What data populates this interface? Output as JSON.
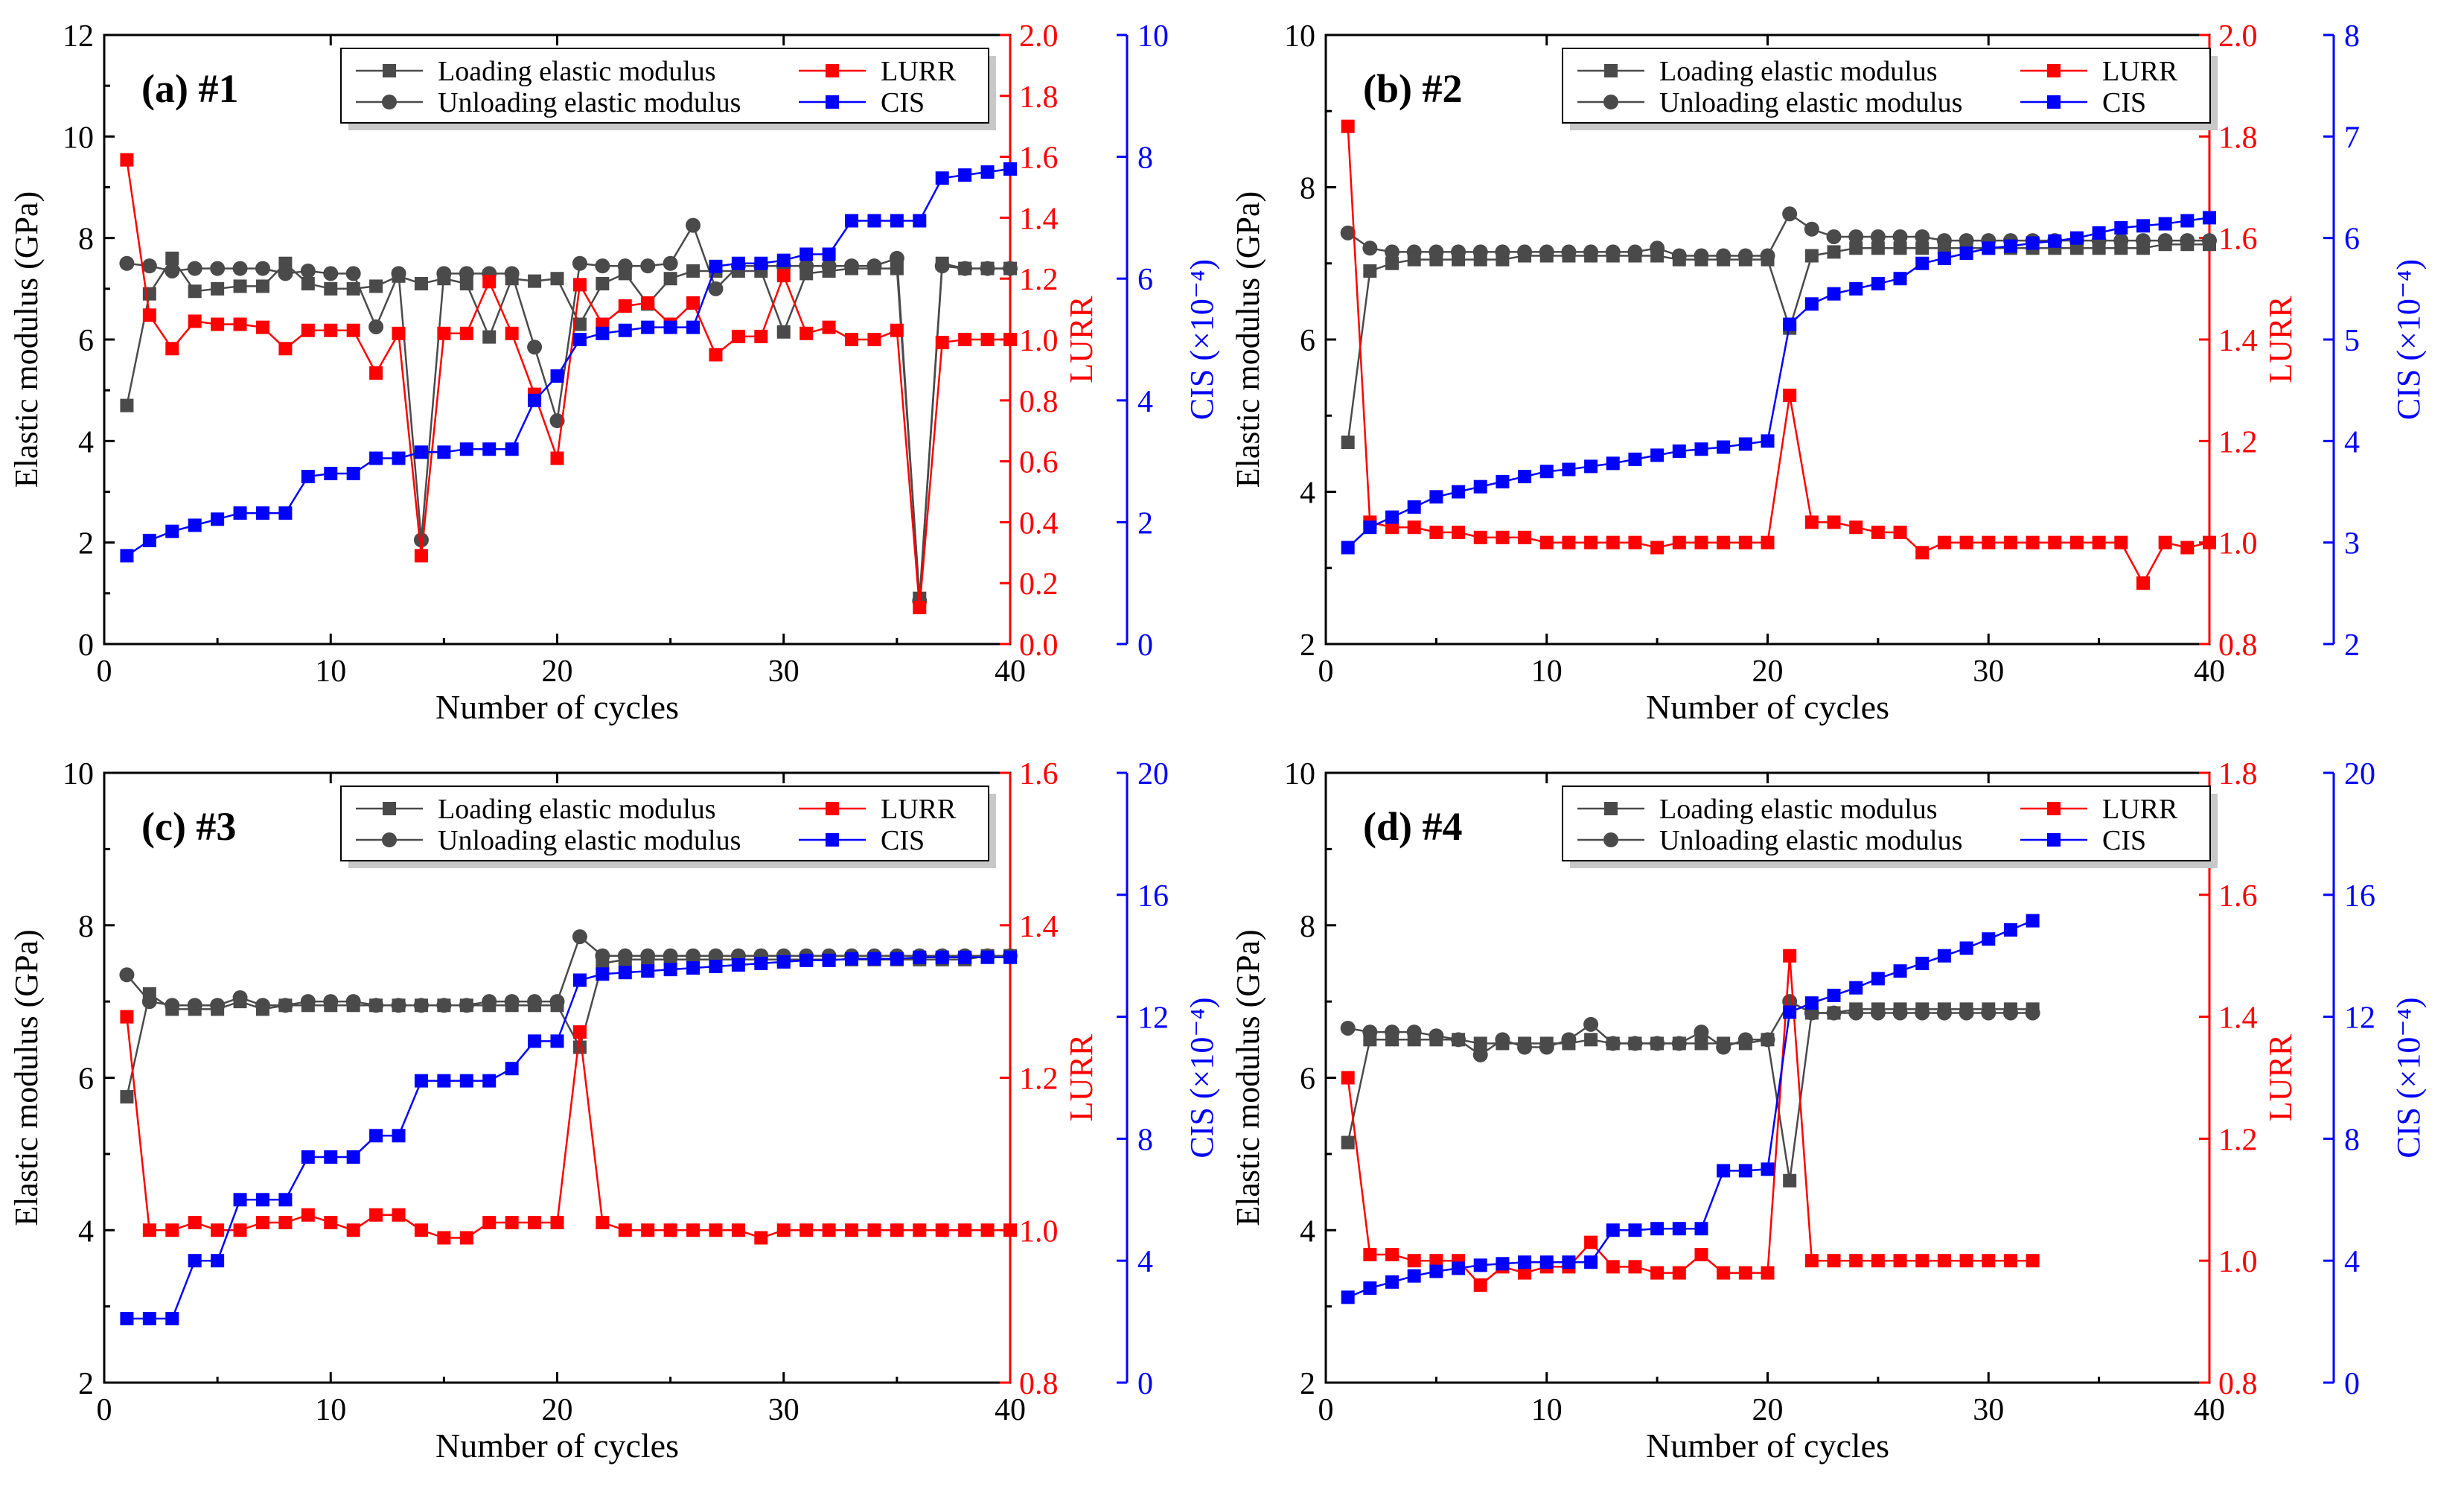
{
  "colors": {
    "loading": "#4a4a4a",
    "unloading": "#4a4a4a",
    "lurr": "#ff0000",
    "cis": "#0000ff",
    "axis": "#000000"
  },
  "legend_labels": {
    "loading": "Loading elastic modulus",
    "unloading": "Unloading elastic modulus",
    "lurr": "LURR",
    "cis": "CIS"
  },
  "chart_data": [
    {
      "type": "line",
      "panel_label": "(a) #1",
      "xlabel": "Number of cycles",
      "ylabel_left": "Elastic modulus (GPa)",
      "ylabel_lurr": "LURR",
      "ylabel_cis": "CIS (×10⁻⁴)",
      "xlim": [
        0,
        40
      ],
      "x_ticks": [
        "0",
        "10",
        "20",
        "30",
        "40"
      ],
      "ylim_left": [
        0,
        12
      ],
      "y_ticks_left": [
        "0",
        "2",
        "4",
        "6",
        "8",
        "10",
        "12"
      ],
      "ylim_lurr": [
        0.0,
        2.0
      ],
      "y_ticks_lurr": [
        "0.0",
        "0.2",
        "0.4",
        "0.6",
        "0.8",
        "1.0",
        "1.2",
        "1.4",
        "1.6",
        "1.8",
        "2.0"
      ],
      "ylim_cis": [
        0,
        10
      ],
      "y_ticks_cis": [
        "0",
        "2",
        "4",
        "6",
        "8",
        "10"
      ],
      "x": [
        1,
        2,
        3,
        4,
        5,
        6,
        7,
        8,
        9,
        10,
        11,
        12,
        13,
        14,
        15,
        16,
        17,
        18,
        19,
        20,
        21,
        22,
        23,
        24,
        25,
        26,
        27,
        28,
        29,
        30,
        31,
        32,
        33,
        34,
        35,
        36,
        37,
        38,
        39,
        40
      ],
      "series": [
        {
          "name": "Loading elastic modulus",
          "axis": "left",
          "marker": "square",
          "values": [
            4.7,
            6.9,
            7.6,
            6.95,
            7.0,
            7.05,
            7.05,
            7.5,
            7.1,
            7.0,
            7.0,
            7.05,
            7.25,
            7.1,
            7.2,
            7.1,
            6.05,
            7.2,
            7.15,
            7.2,
            6.3,
            7.1,
            7.3,
            6.7,
            7.2,
            7.35,
            7.35,
            7.35,
            7.35,
            6.15,
            7.3,
            7.35,
            7.4,
            7.4,
            7.4,
            0.9,
            7.5,
            7.4,
            7.4,
            7.4
          ]
        },
        {
          "name": "Unloading elastic modulus",
          "axis": "left",
          "marker": "circle",
          "values": [
            7.5,
            7.45,
            7.35,
            7.4,
            7.4,
            7.4,
            7.4,
            7.3,
            7.35,
            7.3,
            7.3,
            6.25,
            7.3,
            2.05,
            7.3,
            7.3,
            7.3,
            7.3,
            5.85,
            4.4,
            7.5,
            7.45,
            7.45,
            7.45,
            7.5,
            8.25,
            7.0,
            7.45,
            7.45,
            7.45,
            7.45,
            7.45,
            7.45,
            7.45,
            7.6,
            0.85,
            7.45,
            7.4,
            7.4,
            7.4
          ]
        },
        {
          "name": "LURR",
          "axis": "lurr",
          "marker": "square",
          "values": [
            1.59,
            1.08,
            0.97,
            1.06,
            1.05,
            1.05,
            1.04,
            0.97,
            1.03,
            1.03,
            1.03,
            0.89,
            1.02,
            0.29,
            1.02,
            1.02,
            1.19,
            1.02,
            0.82,
            0.61,
            1.18,
            1.05,
            1.11,
            1.12,
            1.05,
            1.12,
            0.95,
            1.01,
            1.01,
            1.21,
            1.02,
            1.04,
            1.0,
            1.0,
            1.03,
            0.12,
            0.99,
            1.0,
            1.0,
            1.0
          ]
        },
        {
          "name": "CIS",
          "axis": "cis",
          "marker": "square",
          "values": [
            1.45,
            1.7,
            1.85,
            1.95,
            2.05,
            2.15,
            2.15,
            2.15,
            2.75,
            2.8,
            2.8,
            3.05,
            3.05,
            3.15,
            3.15,
            3.2,
            3.2,
            3.2,
            4.0,
            4.4,
            5.0,
            5.1,
            5.15,
            5.2,
            5.2,
            5.2,
            6.2,
            6.25,
            6.25,
            6.3,
            6.4,
            6.4,
            6.95,
            6.95,
            6.95,
            6.95,
            7.65,
            7.7,
            7.75,
            7.8
          ]
        }
      ]
    },
    {
      "type": "line",
      "panel_label": "(b) #2",
      "xlabel": "Number of cycles",
      "ylabel_left": "Elastic modulus (GPa)",
      "ylabel_lurr": "LURR",
      "ylabel_cis": "CIS (×10⁻⁴)",
      "xlim": [
        0,
        40
      ],
      "x_ticks": [
        "0",
        "10",
        "20",
        "30",
        "40"
      ],
      "ylim_left": [
        2,
        10
      ],
      "y_ticks_left": [
        "2",
        "4",
        "6",
        "8",
        "10"
      ],
      "ylim_lurr": [
        0.8,
        2.0
      ],
      "y_ticks_lurr": [
        "0.8",
        "1.0",
        "1.2",
        "1.4",
        "1.6",
        "1.8",
        "2.0"
      ],
      "ylim_cis": [
        2,
        8
      ],
      "y_ticks_cis": [
        "2",
        "3",
        "4",
        "5",
        "6",
        "7",
        "8"
      ],
      "x": [
        1,
        2,
        3,
        4,
        5,
        6,
        7,
        8,
        9,
        10,
        11,
        12,
        13,
        14,
        15,
        16,
        17,
        18,
        19,
        20,
        21,
        22,
        23,
        24,
        25,
        26,
        27,
        28,
        29,
        30,
        31,
        32,
        33,
        34,
        35,
        36,
        37,
        38,
        39,
        40
      ],
      "series": [
        {
          "name": "Loading elastic modulus",
          "axis": "left",
          "marker": "square",
          "values": [
            4.65,
            6.9,
            7.0,
            7.05,
            7.05,
            7.05,
            7.05,
            7.05,
            7.1,
            7.1,
            7.1,
            7.1,
            7.1,
            7.1,
            7.1,
            7.05,
            7.05,
            7.05,
            7.05,
            7.05,
            6.15,
            7.1,
            7.15,
            7.2,
            7.2,
            7.2,
            7.2,
            7.2,
            7.2,
            7.2,
            7.2,
            7.2,
            7.2,
            7.2,
            7.2,
            7.2,
            7.2,
            7.25,
            7.25,
            7.25
          ]
        },
        {
          "name": "Unloading elastic modulus",
          "axis": "left",
          "marker": "circle",
          "values": [
            7.4,
            7.2,
            7.15,
            7.15,
            7.15,
            7.15,
            7.15,
            7.15,
            7.15,
            7.15,
            7.15,
            7.15,
            7.15,
            7.15,
            7.2,
            7.1,
            7.1,
            7.1,
            7.1,
            7.1,
            7.65,
            7.45,
            7.35,
            7.35,
            7.35,
            7.35,
            7.35,
            7.3,
            7.3,
            7.3,
            7.3,
            7.3,
            7.3,
            7.3,
            7.3,
            7.3,
            7.3,
            7.3,
            7.3,
            7.3
          ]
        },
        {
          "name": "LURR",
          "axis": "lurr",
          "marker": "square",
          "values": [
            1.82,
            1.04,
            1.03,
            1.03,
            1.02,
            1.02,
            1.01,
            1.01,
            1.01,
            1.0,
            1.0,
            1.0,
            1.0,
            1.0,
            0.99,
            1.0,
            1.0,
            1.0,
            1.0,
            1.0,
            1.29,
            1.04,
            1.04,
            1.03,
            1.02,
            1.02,
            0.98,
            1.0,
            1.0,
            1.0,
            1.0,
            1.0,
            1.0,
            1.0,
            1.0,
            1.0,
            0.92,
            1.0,
            0.99,
            1.0
          ]
        },
        {
          "name": "CIS",
          "axis": "cis",
          "marker": "square",
          "values": [
            2.95,
            3.15,
            3.25,
            3.35,
            3.45,
            3.5,
            3.55,
            3.6,
            3.65,
            3.7,
            3.72,
            3.75,
            3.78,
            3.82,
            3.86,
            3.9,
            3.92,
            3.94,
            3.97,
            4.0,
            5.15,
            5.35,
            5.45,
            5.5,
            5.55,
            5.6,
            5.75,
            5.8,
            5.85,
            5.9,
            5.92,
            5.95,
            5.97,
            6.0,
            6.05,
            6.1,
            6.12,
            6.14,
            6.17,
            6.2
          ]
        }
      ]
    },
    {
      "type": "line",
      "panel_label": "(c) #3",
      "xlabel": "Number of cycles",
      "ylabel_left": "Elastic modulus (GPa)",
      "ylabel_lurr": "LURR",
      "ylabel_cis": "CIS (×10⁻⁴)",
      "xlim": [
        0,
        40
      ],
      "x_ticks": [
        "0",
        "10",
        "20",
        "30",
        "40"
      ],
      "ylim_left": [
        2,
        10
      ],
      "y_ticks_left": [
        "2",
        "4",
        "6",
        "8",
        "10"
      ],
      "ylim_lurr": [
        0.8,
        1.6
      ],
      "y_ticks_lurr": [
        "0.8",
        "1.0",
        "1.2",
        "1.4",
        "1.6"
      ],
      "ylim_cis": [
        0,
        20
      ],
      "y_ticks_cis": [
        "0",
        "4",
        "8",
        "12",
        "16",
        "20"
      ],
      "x": [
        1,
        2,
        3,
        4,
        5,
        6,
        7,
        8,
        9,
        10,
        11,
        12,
        13,
        14,
        15,
        16,
        17,
        18,
        19,
        20,
        21,
        22,
        23,
        24,
        25,
        26,
        27,
        28,
        29,
        30,
        31,
        32,
        33,
        34,
        35,
        36,
        37,
        38,
        39,
        40
      ],
      "series": [
        {
          "name": "Loading elastic modulus",
          "axis": "left",
          "marker": "square",
          "values": [
            5.75,
            7.1,
            6.9,
            6.9,
            6.9,
            7.0,
            6.9,
            6.95,
            6.95,
            6.95,
            6.95,
            6.95,
            6.95,
            6.95,
            6.95,
            6.95,
            6.95,
            6.95,
            6.95,
            6.95,
            6.4,
            7.5,
            7.55,
            7.55,
            7.55,
            7.55,
            7.55,
            7.55,
            7.55,
            7.55,
            7.55,
            7.55,
            7.55,
            7.55,
            7.55,
            7.55,
            7.55,
            7.55,
            7.6,
            7.6
          ]
        },
        {
          "name": "Unloading elastic modulus",
          "axis": "left",
          "marker": "circle",
          "values": [
            7.35,
            7.0,
            6.95,
            6.95,
            6.95,
            7.05,
            6.95,
            6.95,
            7.0,
            7.0,
            7.0,
            6.95,
            6.95,
            6.95,
            6.95,
            6.95,
            7.0,
            7.0,
            7.0,
            7.0,
            7.85,
            7.6,
            7.6,
            7.6,
            7.6,
            7.6,
            7.6,
            7.6,
            7.6,
            7.6,
            7.6,
            7.6,
            7.6,
            7.6,
            7.6,
            7.6,
            7.6,
            7.6,
            7.6,
            7.6
          ]
        },
        {
          "name": "LURR",
          "axis": "lurr",
          "marker": "square",
          "values": [
            1.28,
            1.0,
            1.0,
            1.01,
            1.0,
            1.0,
            1.01,
            1.01,
            1.02,
            1.01,
            1.0,
            1.02,
            1.02,
            1.0,
            0.99,
            0.99,
            1.01,
            1.01,
            1.01,
            1.01,
            1.26,
            1.01,
            1.0,
            1.0,
            1.0,
            1.0,
            1.0,
            1.0,
            0.99,
            1.0,
            1.0,
            1.0,
            1.0,
            1.0,
            1.0,
            1.0,
            1.0,
            1.0,
            1.0,
            1.0
          ]
        },
        {
          "name": "CIS",
          "axis": "cis",
          "marker": "square",
          "values": [
            2.1,
            2.1,
            2.1,
            4.0,
            4.0,
            6.0,
            6.0,
            6.0,
            7.4,
            7.4,
            7.4,
            8.1,
            8.1,
            9.9,
            9.9,
            9.9,
            9.9,
            10.3,
            11.2,
            11.2,
            13.2,
            13.4,
            13.45,
            13.5,
            13.55,
            13.6,
            13.65,
            13.7,
            13.75,
            13.8,
            13.85,
            13.85,
            13.9,
            13.9,
            13.9,
            13.95,
            13.95,
            13.95,
            13.95,
            13.95
          ]
        }
      ]
    },
    {
      "type": "line",
      "panel_label": "(d) #4",
      "xlabel": "Number of cycles",
      "ylabel_left": "Elastic modulus (GPa)",
      "ylabel_lurr": "LURR",
      "ylabel_cis": "CIS (×10⁻⁴)",
      "xlim": [
        0,
        40
      ],
      "x_ticks": [
        "0",
        "10",
        "20",
        "30",
        "40"
      ],
      "ylim_left": [
        2,
        10
      ],
      "y_ticks_left": [
        "2",
        "4",
        "6",
        "8",
        "10"
      ],
      "ylim_lurr": [
        0.8,
        1.8
      ],
      "y_ticks_lurr": [
        "0.8",
        "1.0",
        "1.2",
        "1.4",
        "1.6",
        "1.8"
      ],
      "ylim_cis": [
        0,
        20
      ],
      "y_ticks_cis": [
        "0",
        "4",
        "8",
        "12",
        "16",
        "20"
      ],
      "x": [
        1,
        2,
        3,
        4,
        5,
        6,
        7,
        8,
        9,
        10,
        11,
        12,
        13,
        14,
        15,
        16,
        17,
        18,
        19,
        20,
        21,
        22,
        23,
        24,
        25,
        26,
        27,
        28,
        29,
        30,
        31,
        32
      ],
      "series": [
        {
          "name": "Loading elastic modulus",
          "axis": "left",
          "marker": "square",
          "values": [
            5.15,
            6.5,
            6.5,
            6.5,
            6.5,
            6.5,
            6.45,
            6.45,
            6.45,
            6.45,
            6.45,
            6.5,
            6.45,
            6.45,
            6.45,
            6.45,
            6.45,
            6.45,
            6.45,
            6.5,
            4.65,
            6.85,
            6.85,
            6.9,
            6.9,
            6.9,
            6.9,
            6.9,
            6.9,
            6.9,
            6.9,
            6.9
          ]
        },
        {
          "name": "Unloading elastic modulus",
          "axis": "left",
          "marker": "circle",
          "values": [
            6.65,
            6.6,
            6.6,
            6.6,
            6.55,
            6.5,
            6.3,
            6.5,
            6.4,
            6.4,
            6.5,
            6.7,
            6.45,
            6.45,
            6.45,
            6.45,
            6.6,
            6.4,
            6.5,
            6.5,
            7.0,
            6.85,
            6.85,
            6.85,
            6.85,
            6.85,
            6.85,
            6.85,
            6.85,
            6.85,
            6.85,
            6.85
          ]
        },
        {
          "name": "LURR",
          "axis": "lurr",
          "marker": "square",
          "values": [
            1.3,
            1.01,
            1.01,
            1.0,
            1.0,
            1.0,
            0.96,
            0.99,
            0.98,
            0.99,
            0.99,
            1.03,
            0.99,
            0.99,
            0.98,
            0.98,
            1.01,
            0.98,
            0.98,
            0.98,
            1.5,
            1.0,
            1.0,
            1.0,
            1.0,
            1.0,
            1.0,
            1.0,
            1.0,
            1.0,
            1.0,
            1.0
          ]
        },
        {
          "name": "CIS",
          "axis": "cis",
          "marker": "square",
          "values": [
            2.8,
            3.1,
            3.3,
            3.5,
            3.65,
            3.75,
            3.85,
            3.9,
            3.95,
            3.95,
            3.95,
            3.95,
            5.0,
            5.0,
            5.05,
            5.05,
            5.05,
            6.95,
            6.95,
            7.0,
            12.15,
            12.45,
            12.7,
            12.95,
            13.25,
            13.5,
            13.75,
            14.0,
            14.25,
            14.55,
            14.85,
            15.15
          ]
        }
      ]
    }
  ]
}
